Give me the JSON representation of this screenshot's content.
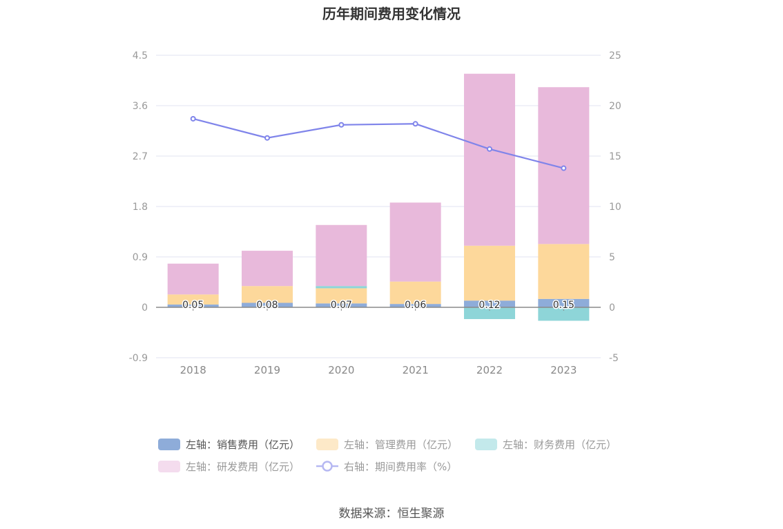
{
  "source": "数据来源：恒生聚源",
  "chart_data": {
    "type": "bar",
    "title": "历年期间费用变化情况",
    "categories": [
      "2018",
      "2019",
      "2020",
      "2021",
      "2022",
      "2023"
    ],
    "y_left": {
      "ticks": [
        "4.5",
        "3.6",
        "2.7",
        "1.8",
        "0.9",
        "0",
        "-0.9"
      ],
      "min": -0.9,
      "max": 4.5
    },
    "y_right": {
      "ticks": [
        "25",
        "20",
        "15",
        "10",
        "5",
        "0",
        "-5"
      ],
      "min": -5,
      "max": 25
    },
    "series": [
      {
        "name": "左轴：销售费用（亿元）",
        "type": "bar",
        "axis": "left",
        "color": "#8eacd9",
        "values": [
          0.05,
          0.08,
          0.07,
          0.06,
          0.12,
          0.15
        ],
        "labels": [
          "0.05",
          "0.08",
          "0.07",
          "0.06",
          "0.12",
          "0.15"
        ]
      },
      {
        "name": "左轴：管理费用（亿元）",
        "type": "bar",
        "axis": "left",
        "color": "#fdd89b",
        "values": [
          0.18,
          0.3,
          0.27,
          0.4,
          0.98,
          0.98
        ]
      },
      {
        "name": "左轴：财务费用（亿元）",
        "type": "bar",
        "axis": "left",
        "color": "#8ed5d8",
        "values": [
          0.0,
          0.0,
          0.04,
          0.0,
          -0.21,
          -0.24
        ]
      },
      {
        "name": "左轴：研发费用（亿元）",
        "type": "bar",
        "axis": "left",
        "color": "#e8b9db",
        "values": [
          0.55,
          0.63,
          1.09,
          1.41,
          3.07,
          2.8
        ]
      },
      {
        "name": "右轴：期间费用率（%）",
        "type": "line",
        "axis": "right",
        "color": "#7f84ea",
        "values": [
          18.7,
          16.8,
          18.1,
          18.2,
          15.7,
          13.8
        ]
      }
    ],
    "legend_position": "bottom",
    "grid": true
  }
}
